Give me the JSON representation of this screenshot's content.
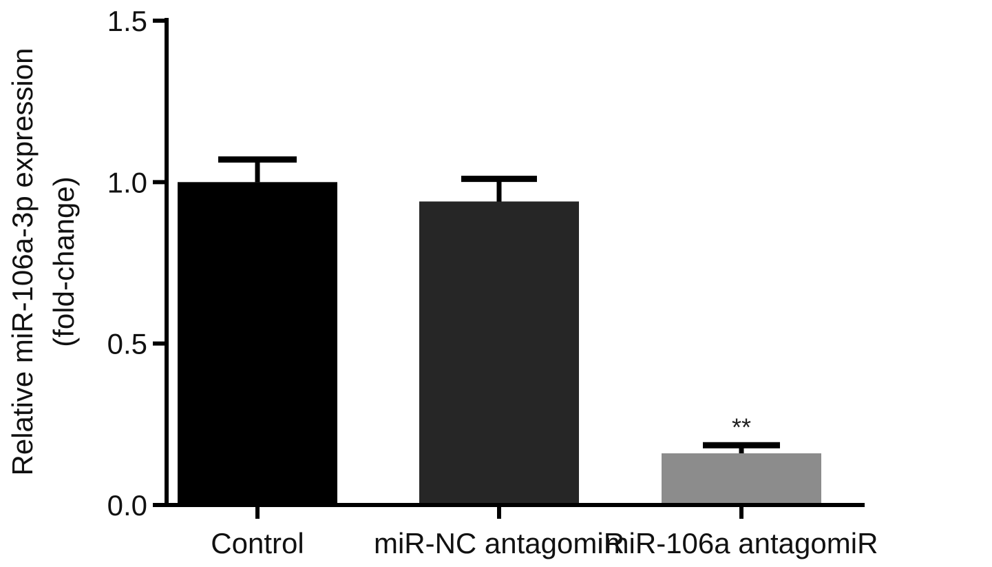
{
  "chart_data": {
    "type": "bar",
    "title": "",
    "xlabel": "",
    "ylabel_lines": [
      "Relative miR-106a-3p expression",
      "(fold-change)"
    ],
    "categories": [
      "Control",
      "miR-NC antagomiR",
      "miR-106a antagomiR"
    ],
    "values": [
      1.0,
      0.94,
      0.16
    ],
    "errors": [
      0.07,
      0.07,
      0.025
    ],
    "bar_colors": [
      "#000000",
      "#262626",
      "#8c8c8c"
    ],
    "annotations": [
      "",
      "",
      "**"
    ],
    "yticks": [
      "0.0",
      "0.5",
      "1.0",
      "1.5"
    ],
    "ylim": [
      0,
      1.5
    ],
    "grid": false,
    "legend": "none"
  }
}
